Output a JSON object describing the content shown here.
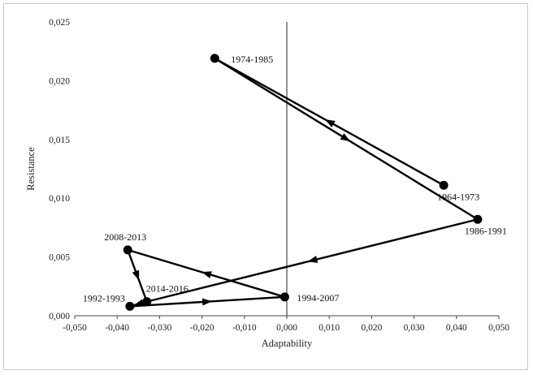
{
  "chart_data": {
    "type": "scatter",
    "title": "",
    "xlabel": "Adaptability",
    "ylabel": "Resistance",
    "xlim": [
      -0.05,
      0.05
    ],
    "ylim": [
      0.0,
      0.025
    ],
    "grid": false,
    "x_ticks": [
      "-0,050",
      "-0,040",
      "-0,030",
      "-0,020",
      "-0,010",
      "0,000",
      "0,010",
      "0,020",
      "0,030",
      "0,040",
      "0,050"
    ],
    "y_ticks": [
      "0,000",
      "0,005",
      "0,010",
      "0,015",
      "0,020",
      "0,025"
    ],
    "points": [
      {
        "label": "1964-1973",
        "x": 0.037,
        "y": 0.0111
      },
      {
        "label": "1974-1985",
        "x": -0.017,
        "y": 0.0219
      },
      {
        "label": "1986-1991",
        "x": 0.045,
        "y": 0.0082
      },
      {
        "label": "1992-1993",
        "x": -0.037,
        "y": 0.0008
      },
      {
        "label": "1994-2007",
        "x": -0.0005,
        "y": 0.0016
      },
      {
        "label": "2008-2013",
        "x": -0.0375,
        "y": 0.0056
      },
      {
        "label": "2014-2016",
        "x": -0.033,
        "y": 0.0012
      }
    ],
    "path_order": [
      "1964-1973",
      "1974-1985",
      "1986-1991",
      "2014-2016",
      "1992-1993",
      "1994-2007",
      "2008-2013",
      "2014-2016"
    ],
    "line_color": "#000000",
    "marker_color": "#000000"
  }
}
